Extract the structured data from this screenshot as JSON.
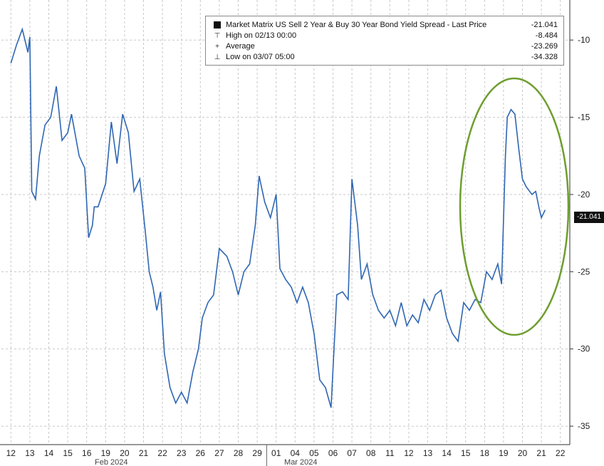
{
  "legend": {
    "title": "Market Matrix US Sell 2 Year & Buy 30 Year Bond Yield Spread - Last Price",
    "last_value": "-21.041",
    "high_label": "High on 02/13 00:00",
    "high_value": "-8.484",
    "average_label": "Average",
    "average_value": "-23.269",
    "low_label": "Low on 03/07 05:00",
    "low_value": "-34.328"
  },
  "last_badge": "-21.041",
  "colors": {
    "series": "#2f66b3",
    "grid": "#c8c8c8",
    "ellipse": "#6e9e2f"
  },
  "chart_data": {
    "type": "line",
    "x_categories": [
      "12",
      "13",
      "14",
      "15",
      "16",
      "19",
      "20",
      "21",
      "22",
      "23",
      "26",
      "27",
      "28",
      "29",
      "01",
      "04",
      "05",
      "06",
      "07",
      "08",
      "11",
      "12",
      "13",
      "14",
      "15",
      "18",
      "19",
      "20",
      "21",
      "22"
    ],
    "month_labels": [
      "Feb 2024",
      "Mar 2024"
    ],
    "ylim": [
      -36,
      -7.5
    ],
    "yticks": [
      -10,
      -15,
      -20,
      -25,
      -30,
      -35
    ],
    "series": [
      {
        "values": [
          [
            0,
            -11.5
          ],
          [
            0.3,
            -10.3
          ],
          [
            0.6,
            -9.3
          ],
          [
            0.9,
            -10.8
          ],
          [
            1.0,
            -9.8
          ],
          [
            1.1,
            -19.8
          ],
          [
            1.3,
            -20.3
          ],
          [
            1.5,
            -17.5
          ],
          [
            1.8,
            -15.5
          ],
          [
            2.1,
            -15.0
          ],
          [
            2.4,
            -13.0
          ],
          [
            2.7,
            -16.5
          ],
          [
            3.0,
            -16.0
          ],
          [
            3.2,
            -14.8
          ],
          [
            3.6,
            -17.5
          ],
          [
            3.9,
            -18.3
          ],
          [
            4.1,
            -22.8
          ],
          [
            4.3,
            -22.0
          ],
          [
            4.4,
            -20.8
          ],
          [
            4.6,
            -20.8
          ],
          [
            5.0,
            -19.3
          ],
          [
            5.3,
            -15.3
          ],
          [
            5.6,
            -18.0
          ],
          [
            5.9,
            -14.8
          ],
          [
            6.2,
            -16.0
          ],
          [
            6.5,
            -19.8
          ],
          [
            6.8,
            -19.0
          ],
          [
            7.1,
            -22.5
          ],
          [
            7.3,
            -25.0
          ],
          [
            7.5,
            -26.0
          ],
          [
            7.7,
            -27.5
          ],
          [
            7.9,
            -26.3
          ],
          [
            8.1,
            -30.3
          ],
          [
            8.4,
            -32.5
          ],
          [
            8.7,
            -33.5
          ],
          [
            9.0,
            -32.8
          ],
          [
            9.3,
            -33.5
          ],
          [
            9.6,
            -31.5
          ],
          [
            9.9,
            -30.0
          ],
          [
            10.1,
            -28.0
          ],
          [
            10.4,
            -27.0
          ],
          [
            10.7,
            -26.5
          ],
          [
            11.0,
            -23.5
          ],
          [
            11.4,
            -24.0
          ],
          [
            11.7,
            -25.0
          ],
          [
            12.0,
            -26.5
          ],
          [
            12.3,
            -25.0
          ],
          [
            12.6,
            -24.5
          ],
          [
            12.9,
            -22.0
          ],
          [
            13.1,
            -18.8
          ],
          [
            13.4,
            -20.5
          ],
          [
            13.7,
            -21.5
          ],
          [
            14.0,
            -20.0
          ],
          [
            14.2,
            -24.8
          ],
          [
            14.5,
            -25.5
          ],
          [
            14.8,
            -26.0
          ],
          [
            15.1,
            -27.0
          ],
          [
            15.4,
            -26.0
          ],
          [
            15.7,
            -27.0
          ],
          [
            16.0,
            -29.0
          ],
          [
            16.3,
            -32.0
          ],
          [
            16.6,
            -32.5
          ],
          [
            16.9,
            -33.8
          ],
          [
            17.2,
            -26.5
          ],
          [
            17.5,
            -26.3
          ],
          [
            17.8,
            -26.8
          ],
          [
            18.0,
            -19.0
          ],
          [
            18.3,
            -22.0
          ],
          [
            18.5,
            -25.5
          ],
          [
            18.8,
            -24.5
          ],
          [
            19.1,
            -26.5
          ],
          [
            19.4,
            -27.5
          ],
          [
            19.7,
            -28.0
          ],
          [
            20.0,
            -27.5
          ],
          [
            20.3,
            -28.5
          ],
          [
            20.6,
            -27.0
          ],
          [
            20.9,
            -28.5
          ],
          [
            21.2,
            -27.8
          ],
          [
            21.5,
            -28.3
          ],
          [
            21.8,
            -26.8
          ],
          [
            22.1,
            -27.5
          ],
          [
            22.4,
            -26.5
          ],
          [
            22.7,
            -26.2
          ],
          [
            23.0,
            -28.0
          ],
          [
            23.3,
            -29.0
          ],
          [
            23.6,
            -29.5
          ],
          [
            23.9,
            -27.0
          ],
          [
            24.2,
            -27.5
          ],
          [
            24.5,
            -26.8
          ],
          [
            24.8,
            -27.0
          ],
          [
            25.1,
            -25.0
          ],
          [
            25.4,
            -25.5
          ],
          [
            25.7,
            -24.5
          ],
          [
            25.9,
            -25.8
          ],
          [
            26.1,
            -17.5
          ],
          [
            26.2,
            -15.0
          ],
          [
            26.4,
            -14.5
          ],
          [
            26.6,
            -14.8
          ],
          [
            26.8,
            -17.0
          ],
          [
            27.0,
            -19.0
          ],
          [
            27.2,
            -19.5
          ],
          [
            27.5,
            -20.0
          ],
          [
            27.7,
            -19.8
          ],
          [
            27.9,
            -21.0
          ],
          [
            28.0,
            -21.5
          ],
          [
            28.2,
            -21.0
          ]
        ]
      }
    ]
  }
}
